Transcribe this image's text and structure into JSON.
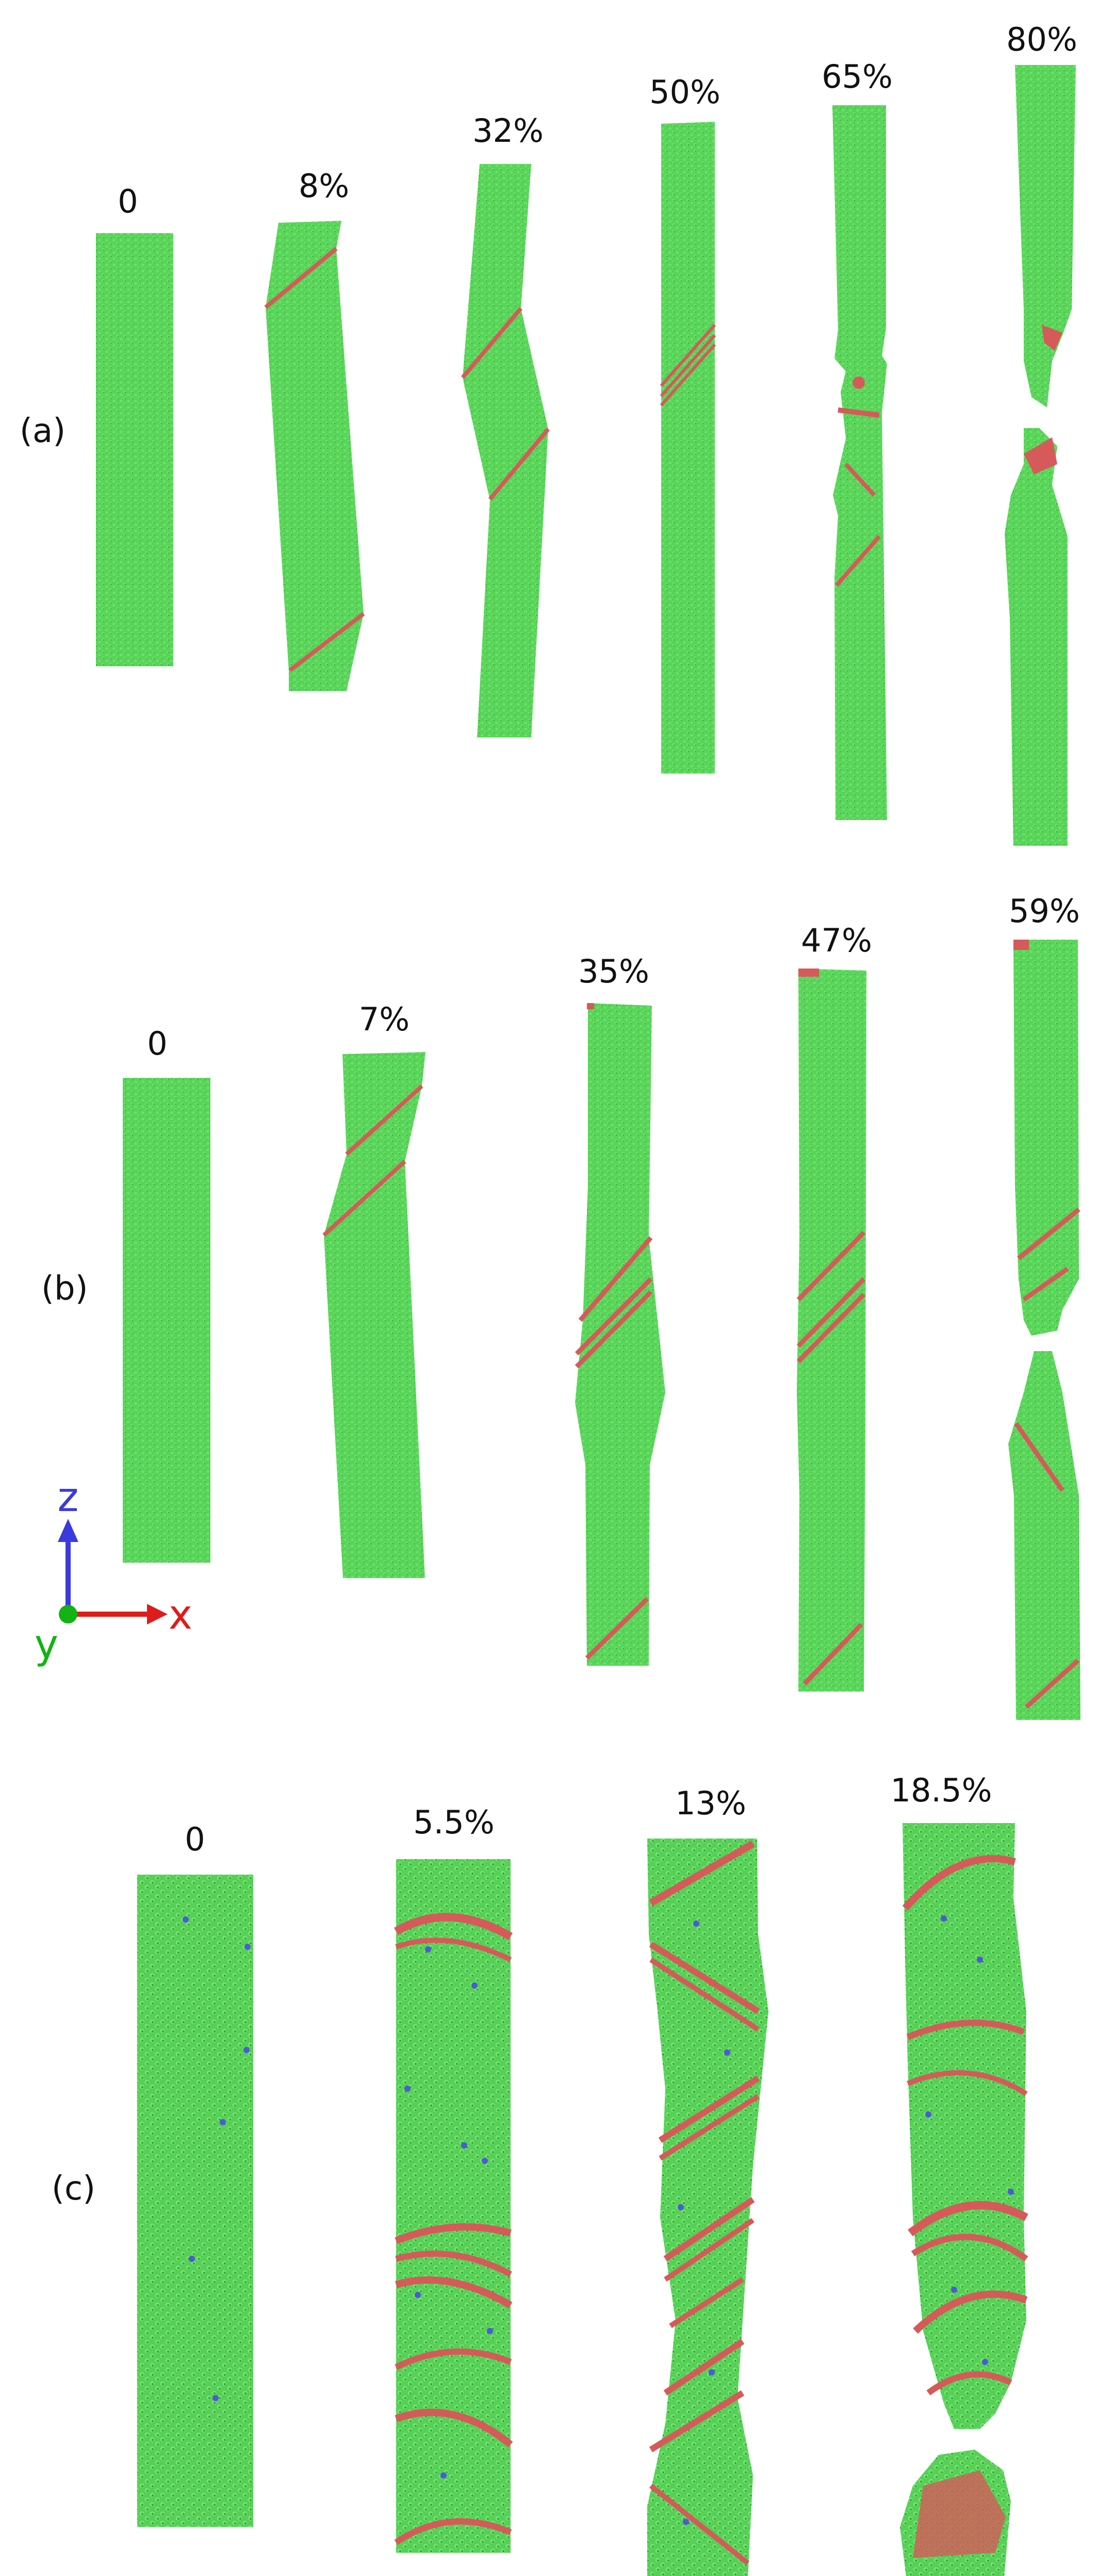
{
  "colors": {
    "atom_green": "#57d457",
    "atom_green_dark": "#3fa83f",
    "defect_red": "#d65a5a",
    "defect_blue": "#4b5bd6",
    "axis_z": "#3a3adf",
    "axis_x": "#e01b1b",
    "axis_y": "#12b312"
  },
  "panels": [
    {
      "label": "(a)",
      "strains": [
        "0",
        "8%",
        "32%",
        "50%",
        "65%",
        "80%"
      ]
    },
    {
      "label": "(b)",
      "strains": [
        "0",
        "7%",
        "35%",
        "47%",
        "59%"
      ]
    },
    {
      "label": "(c)",
      "strains": [
        "0",
        "5.5%",
        "13%",
        "18.5%"
      ]
    }
  ],
  "axes": {
    "z": "z",
    "x": "x",
    "y": "y"
  }
}
